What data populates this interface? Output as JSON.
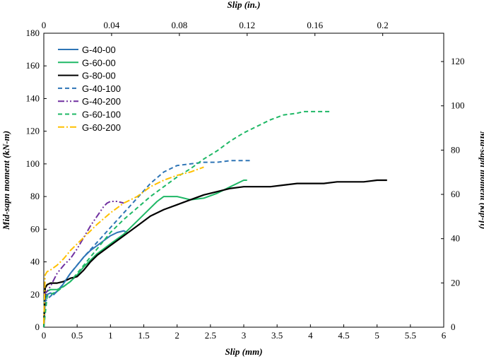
{
  "chart_data": {
    "type": "line",
    "title": "",
    "xlabel": "Slip (mm)",
    "ylabel": "Mid-sapn moment (kN-m)",
    "x2label": "Slip (in.)",
    "y2label": "Mid-sapn moment (kip-ft)",
    "xlim": [
      0,
      6
    ],
    "ylim": [
      0,
      180
    ],
    "x2lim": [
      0,
      0.236
    ],
    "y2lim": [
      0,
      132.8
    ],
    "xticks": [
      "0",
      "0.5",
      "1",
      "1.5",
      "2",
      "2.5",
      "3",
      "3.5",
      "4",
      "4.5",
      "5",
      "5.5",
      "6"
    ],
    "yticks": [
      "0",
      "20",
      "40",
      "60",
      "80",
      "100",
      "120",
      "140",
      "160",
      "180"
    ],
    "x2ticks": [
      "0",
      "0.04",
      "0.08",
      "0.12",
      "0.16",
      "0.2"
    ],
    "y2ticks": [
      "0",
      "20",
      "40",
      "60",
      "80",
      "100",
      "120"
    ],
    "grid": false,
    "legend_position": "top-left",
    "series": [
      {
        "name": "G-40-00",
        "color": "#2e75b6",
        "dash": "solid",
        "x": [
          0,
          0.02,
          0.05,
          0.1,
          0.15,
          0.2,
          0.25,
          0.3,
          0.4,
          0.5,
          0.6,
          0.7,
          0.8,
          0.9,
          1.0,
          1.1,
          1.2,
          1.25
        ],
        "y": [
          0,
          18,
          20,
          21,
          20,
          22,
          24,
          27,
          33,
          38,
          43,
          47,
          50,
          53,
          56,
          58,
          59,
          58
        ]
      },
      {
        "name": "G-60-00",
        "color": "#1fb866",
        "dash": "solid",
        "x": [
          0,
          0.01,
          0.05,
          0.1,
          0.2,
          0.3,
          0.4,
          0.5,
          0.6,
          0.7,
          0.8,
          1.0,
          1.2,
          1.4,
          1.6,
          1.7,
          1.8,
          1.9,
          2.0,
          2.1,
          2.2,
          2.4,
          2.6,
          2.8,
          3.0,
          3.05
        ],
        "y": [
          0,
          20,
          22,
          23,
          23,
          25,
          28,
          32,
          37,
          41,
          45,
          51,
          57,
          65,
          73,
          77,
          80,
          80,
          80,
          79,
          78,
          79,
          82,
          86,
          90,
          90
        ]
      },
      {
        "name": "G-80-00",
        "color": "#000000",
        "dash": "solid",
        "x": [
          0,
          0.02,
          0.05,
          0.1,
          0.2,
          0.3,
          0.4,
          0.5,
          0.6,
          0.7,
          0.8,
          1.0,
          1.2,
          1.4,
          1.6,
          1.8,
          2.0,
          2.2,
          2.4,
          2.6,
          2.8,
          3.0,
          3.2,
          3.4,
          3.6,
          3.8,
          4.0,
          4.2,
          4.4,
          4.6,
          4.8,
          5.0,
          5.1,
          5.15
        ],
        "y": [
          0,
          24,
          26,
          27,
          27,
          28,
          30,
          31,
          35,
          40,
          44,
          50,
          56,
          62,
          68,
          72,
          75,
          78,
          81,
          83,
          85,
          86,
          86,
          86,
          87,
          88,
          88,
          88,
          89,
          89,
          89,
          90,
          90,
          90
        ]
      },
      {
        "name": "G-40-100",
        "color": "#2e75b6",
        "dash": "dashed",
        "x": [
          0,
          0.05,
          0.1,
          0.2,
          0.3,
          0.4,
          0.6,
          0.8,
          1.0,
          1.2,
          1.4,
          1.6,
          1.8,
          2.0,
          2.2,
          2.4,
          2.6,
          2.8,
          3.0,
          3.1
        ],
        "y": [
          15,
          17,
          19,
          22,
          27,
          33,
          43,
          52,
          61,
          70,
          79,
          88,
          95,
          99,
          100,
          101,
          101,
          102,
          102,
          102
        ]
      },
      {
        "name": "G-40-200",
        "color": "#7030a0",
        "dash": "dashdotdot",
        "x": [
          0,
          0.05,
          0.1,
          0.2,
          0.3,
          0.4,
          0.5,
          0.6,
          0.7,
          0.8,
          0.9,
          0.95,
          1.0,
          1.1,
          1.2
        ],
        "y": [
          20,
          22,
          25,
          33,
          38,
          42,
          48,
          55,
          62,
          68,
          74,
          76,
          77,
          77,
          76
        ]
      },
      {
        "name": "G-60-100",
        "color": "#1fb866",
        "dash": "dashed",
        "x": [
          0,
          0.05,
          0.1,
          0.2,
          0.4,
          0.6,
          0.8,
          1.0,
          1.2,
          1.4,
          1.6,
          1.8,
          2.0,
          2.2,
          2.4,
          2.6,
          2.8,
          3.0,
          3.2,
          3.4,
          3.6,
          3.8,
          3.9,
          4.0,
          4.1,
          4.2,
          4.3
        ],
        "y": [
          0,
          19,
          20,
          22,
          28,
          38,
          48,
          58,
          66,
          73,
          80,
          86,
          92,
          97,
          103,
          108,
          114,
          119,
          123,
          127,
          130,
          131,
          132,
          132,
          132,
          132,
          132
        ]
      },
      {
        "name": "G-60-200",
        "color": "#ffc000",
        "dash": "dashdot",
        "x": [
          0,
          0.02,
          0.05,
          0.1,
          0.2,
          0.3,
          0.4,
          0.6,
          0.8,
          1.0,
          1.2,
          1.4,
          1.6,
          1.8,
          2.0,
          2.2,
          2.4
        ],
        "y": [
          2,
          32,
          34,
          35,
          38,
          42,
          47,
          55,
          63,
          70,
          76,
          80,
          86,
          90,
          93,
          95,
          98
        ]
      }
    ]
  }
}
